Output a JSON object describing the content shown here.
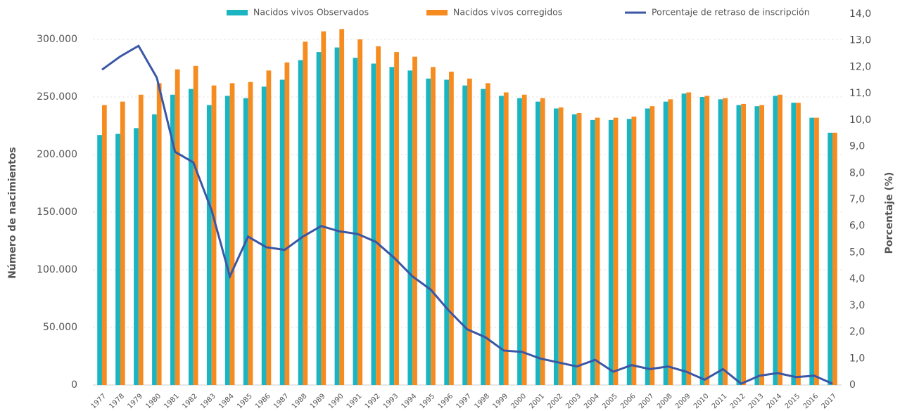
{
  "chart_data": {
    "type": "bar_line",
    "y_label": "Número de nacimientos",
    "y2_label": "Porcentaje (%)",
    "categories": [
      "1977",
      "1978",
      "1979",
      "1980",
      "1981",
      "1982",
      "1983",
      "1984",
      "1985",
      "1986",
      "1987",
      "1988",
      "1989",
      "1990",
      "1991",
      "1992",
      "1993",
      "1994",
      "1995",
      "1996",
      "1997",
      "1998",
      "1999",
      "2000",
      "2001",
      "2002",
      "2003",
      "2004",
      "2005",
      "2006",
      "2007",
      "2008",
      "2009",
      "2010",
      "2011",
      "2012",
      "2013",
      "2014",
      "2015",
      "2016",
      "2017"
    ],
    "series": [
      {
        "name": "Nacidos vivos Observados",
        "color": "#1ab5c1",
        "values": [
          217000,
          218000,
          223000,
          235000,
          252000,
          257000,
          243000,
          251000,
          249000,
          259000,
          265000,
          282000,
          289000,
          293000,
          284000,
          279000,
          276000,
          273000,
          266000,
          265000,
          260000,
          257000,
          251000,
          249000,
          246000,
          240000,
          235000,
          230000,
          230000,
          231000,
          240000,
          246000,
          253000,
          250000,
          248000,
          243000,
          242000,
          251000,
          245000,
          232000,
          219000
        ]
      },
      {
        "name": "Nacidos vivos corregidos",
        "color": "#f68b1f",
        "values": [
          243000,
          246000,
          252000,
          262000,
          274000,
          277000,
          260000,
          262000,
          263000,
          273000,
          280000,
          298000,
          307000,
          309000,
          300000,
          294000,
          289000,
          285000,
          276000,
          272000,
          266000,
          262000,
          254000,
          252000,
          249000,
          241000,
          236000,
          232000,
          232000,
          233000,
          242000,
          248000,
          254000,
          251000,
          249000,
          244000,
          243000,
          252000,
          245000,
          232000,
          219000
        ]
      },
      {
        "name": "Porcentaje de retraso de inscripción",
        "color": "#3a56a5",
        "axis": "y2",
        "values": [
          11.9,
          12.4,
          12.8,
          11.6,
          8.8,
          8.4,
          6.6,
          4.1,
          5.6,
          5.2,
          5.1,
          5.6,
          6.0,
          5.8,
          5.7,
          5.4,
          4.8,
          4.1,
          3.6,
          2.8,
          2.1,
          1.8,
          1.3,
          1.25,
          1.0,
          0.85,
          0.7,
          0.95,
          0.5,
          0.75,
          0.6,
          0.7,
          0.5,
          0.2,
          0.6,
          0.05,
          0.35,
          0.45,
          0.3,
          0.35,
          0.05
        ]
      }
    ],
    "ylim": [
      0,
      322000
    ],
    "yticks": [
      0,
      {
        "value": 50000,
        "label": "50.000"
      },
      {
        "value": 100000,
        "label": "100.000"
      },
      {
        "value": 150000,
        "label": "150.000"
      },
      {
        "value": 200000,
        "label": "200.000"
      },
      {
        "value": 250000,
        "label": "250.000"
      },
      {
        "value": 300000,
        "label": "300.000"
      }
    ],
    "y2lim": [
      0,
      14
    ],
    "y2ticks": [
      0,
      {
        "value": 1,
        "label": "1,0"
      },
      {
        "value": 2,
        "label": "2,0"
      },
      {
        "value": 3,
        "label": "3,0"
      },
      {
        "value": 4,
        "label": "4,0"
      },
      {
        "value": 5,
        "label": "5,0"
      },
      {
        "value": 6,
        "label": "6,0"
      },
      {
        "value": 7,
        "label": "7,0"
      },
      {
        "value": 8,
        "label": "8,0"
      },
      {
        "value": 9,
        "label": "9,0"
      },
      {
        "value": 10,
        "label": "10,0"
      },
      {
        "value": 11,
        "label": "11,0"
      },
      {
        "value": 12,
        "label": "12,0"
      },
      {
        "value": 13,
        "label": "13,0"
      },
      {
        "value": 14,
        "label": "14,0"
      }
    ],
    "grid": true
  }
}
